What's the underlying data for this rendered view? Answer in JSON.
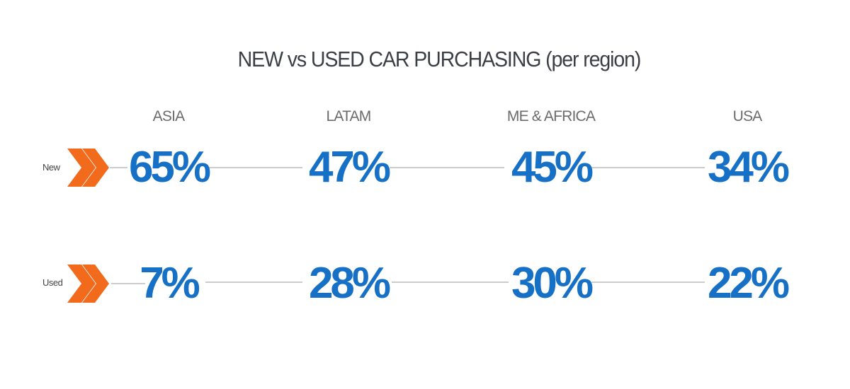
{
  "header": {
    "title": "NEW vs USED CAR PURCHASING (per region)"
  },
  "table": {
    "columns": [
      "ASIA",
      "LATAM",
      "ME & AFRICA",
      "USA"
    ],
    "rows": [
      {
        "label": "New",
        "cells": [
          "65%",
          "47%",
          "45%",
          "34%"
        ]
      },
      {
        "label": "Used",
        "cells": [
          "7%",
          "28%",
          "30%",
          "22%"
        ]
      }
    ]
  }
}
